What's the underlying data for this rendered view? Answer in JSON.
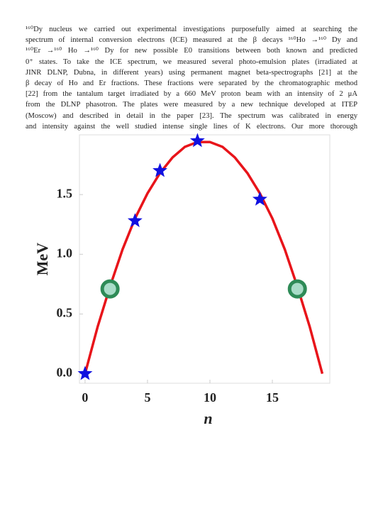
{
  "paragraph": {
    "lines": [
      "¹⁶⁰Dy nucleus we carried out experimental investigations purposefully aimed at searching the",
      "spectrum of internal conversion electrons (ICE) measured at the β decays ¹⁶⁰Ho →¹⁶⁰ Dy and",
      "¹⁶⁰Er →¹⁶⁰ Ho →¹⁶⁰ Dy for new possible E0 transitions between both known and predicted",
      "0⁺ states. To take the ICE spectrum, we measured several photo-emulsion plates (irradiated at",
      "JINR DLNP, Dubna, in different years) using permanent magnet beta-spectrographs [21] at the",
      "β decay of Ho and Er fractions. These fractions were separated by the chromatographic method",
      "[22] from the tantalum target irradiated by a 660 MeV proton beam with an intensity of 2 μA",
      "from the DLNP phasotron. The plates were measured by a new technique developed at ITEP",
      "(Moscow) and described in detail in the paper [23]. The spectrum was calibrated in energy",
      "and intensity against the well studied intense single lines of K electrons. Our more thorough"
    ]
  },
  "chart_data": {
    "type": "line",
    "xlabel": "n",
    "ylabel": "MeV",
    "xlim": [
      -0.45,
      19.6
    ],
    "ylim": [
      -0.08,
      2.0
    ],
    "xticks": [
      0,
      5,
      10,
      15
    ],
    "yticks": [
      {
        "value": 0,
        "label": "0.0"
      },
      {
        "value": 0.5,
        "label": "0.5"
      },
      {
        "value": 1.0,
        "label": "1.0"
      },
      {
        "value": 1.5,
        "label": "1.5"
      }
    ],
    "series": [
      {
        "type": "line",
        "color": "#e8141a",
        "x": [
          0,
          1,
          2,
          3,
          4,
          5,
          6,
          7,
          8,
          9,
          10,
          11,
          12,
          13,
          14,
          15,
          16,
          17,
          18,
          19
        ],
        "values": [
          0,
          0.39,
          0.73,
          1.04,
          1.3,
          1.51,
          1.68,
          1.81,
          1.9,
          1.94,
          1.94,
          1.9,
          1.81,
          1.68,
          1.51,
          1.3,
          1.04,
          0.73,
          0.39,
          0
        ]
      },
      {
        "type": "star",
        "color": "#1010e0",
        "x": [
          0,
          4,
          6,
          9,
          14
        ],
        "values": [
          0,
          1.28,
          1.7,
          1.95,
          1.46
        ]
      },
      {
        "type": "circle",
        "color": "#2e8b57",
        "x": [
          2,
          17
        ],
        "values": [
          0.71,
          0.71
        ]
      }
    ]
  }
}
